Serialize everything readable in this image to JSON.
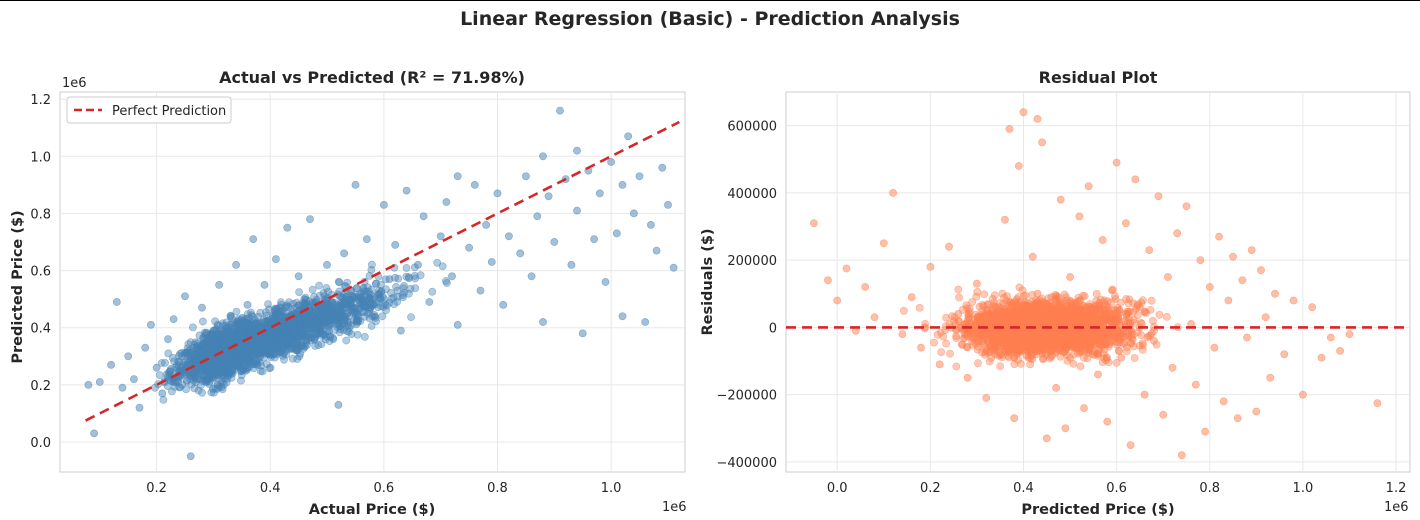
{
  "figure": {
    "title": "Linear Regression (Basic) - Prediction Analysis"
  },
  "chart_data": [
    {
      "type": "scatter",
      "title": "Actual vs Predicted (R² = 71.98%)",
      "xlabel": "Actual Price ($)",
      "ylabel": "Predicted Price ($)",
      "x_multiplier": "1e6",
      "y_multiplier": "1e6",
      "xlim": [
        0.03,
        1.13
      ],
      "ylim": [
        -0.105,
        1.225
      ],
      "xticks": [
        "0.2",
        "0.4",
        "0.6",
        "0.8",
        "1.0"
      ],
      "xtick_values": [
        0.2,
        0.4,
        0.6,
        0.8,
        1.0
      ],
      "yticks": [
        "0.0",
        "0.2",
        "0.4",
        "0.6",
        "0.8",
        "1.0",
        "1.2"
      ],
      "ytick_values": [
        0.0,
        0.2,
        0.4,
        0.6,
        0.8,
        1.0,
        1.2
      ],
      "grid": true,
      "legend": {
        "position": "top-left",
        "entries": [
          "Perfect Prediction"
        ]
      },
      "point_color": "#4682B4",
      "line_color": "#D62728",
      "reference_line": {
        "name": "Perfect Prediction",
        "x": [
          0.075,
          1.12
        ],
        "y": [
          0.075,
          1.12
        ],
        "style": "dashed"
      },
      "series": [
        {
          "points": [
            [
              0.08,
              0.2
            ],
            [
              0.09,
              0.03
            ],
            [
              0.1,
              0.21
            ],
            [
              0.12,
              0.27
            ],
            [
              0.13,
              0.49
            ],
            [
              0.14,
              0.19
            ],
            [
              0.15,
              0.3
            ],
            [
              0.16,
              0.22
            ],
            [
              0.17,
              0.12
            ],
            [
              0.18,
              0.33
            ],
            [
              0.19,
              0.41
            ],
            [
              0.2,
              0.26
            ],
            [
              0.21,
              0.17
            ],
            [
              0.22,
              0.36
            ],
            [
              0.23,
              0.43
            ],
            [
              0.24,
              0.28
            ],
            [
              0.25,
              0.51
            ],
            [
              0.26,
              -0.05
            ],
            [
              0.27,
              0.33
            ],
            [
              0.28,
              0.47
            ],
            [
              0.29,
              0.22
            ],
            [
              0.3,
              0.39
            ],
            [
              0.31,
              0.55
            ],
            [
              0.32,
              0.3
            ],
            [
              0.33,
              0.44
            ],
            [
              0.34,
              0.62
            ],
            [
              0.35,
              0.35
            ],
            [
              0.36,
              0.48
            ],
            [
              0.37,
              0.71
            ],
            [
              0.38,
              0.4
            ],
            [
              0.39,
              0.55
            ],
            [
              0.4,
              0.31
            ],
            [
              0.41,
              0.64
            ],
            [
              0.42,
              0.46
            ],
            [
              0.43,
              0.75
            ],
            [
              0.44,
              0.38
            ],
            [
              0.45,
              0.58
            ],
            [
              0.46,
              0.5
            ],
            [
              0.47,
              0.78
            ],
            [
              0.48,
              0.42
            ],
            [
              0.5,
              0.62
            ],
            [
              0.51,
              0.47
            ],
            [
              0.52,
              0.13
            ],
            [
              0.53,
              0.66
            ],
            [
              0.55,
              0.9
            ],
            [
              0.56,
              0.52
            ],
            [
              0.57,
              0.71
            ],
            [
              0.58,
              0.44
            ],
            [
              0.6,
              0.83
            ],
            [
              0.61,
              0.57
            ],
            [
              0.62,
              0.69
            ],
            [
              0.63,
              0.39
            ],
            [
              0.64,
              0.88
            ],
            [
              0.66,
              0.62
            ],
            [
              0.67,
              0.79
            ],
            [
              0.68,
              0.49
            ],
            [
              0.7,
              0.72
            ],
            [
              0.71,
              0.84
            ],
            [
              0.72,
              0.58
            ],
            [
              0.73,
              0.41
            ],
            [
              0.75,
              0.68
            ],
            [
              0.76,
              0.9
            ],
            [
              0.77,
              0.53
            ],
            [
              0.78,
              0.76
            ],
            [
              0.79,
              0.63
            ],
            [
              0.8,
              0.87
            ],
            [
              0.81,
              0.48
            ],
            [
              0.82,
              0.72
            ],
            [
              0.84,
              0.66
            ],
            [
              0.85,
              0.93
            ],
            [
              0.86,
              0.58
            ],
            [
              0.87,
              0.79
            ],
            [
              0.88,
              0.42
            ],
            [
              0.89,
              0.86
            ],
            [
              0.9,
              0.7
            ],
            [
              0.91,
              1.16
            ],
            [
              0.92,
              0.92
            ],
            [
              0.93,
              0.62
            ],
            [
              0.94,
              0.81
            ],
            [
              0.95,
              0.38
            ],
            [
              0.96,
              0.95
            ],
            [
              0.97,
              0.71
            ],
            [
              0.98,
              0.87
            ],
            [
              0.99,
              0.56
            ],
            [
              1.0,
              0.98
            ],
            [
              1.01,
              0.73
            ],
            [
              1.02,
              0.9
            ],
            [
              1.03,
              1.07
            ],
            [
              1.04,
              0.8
            ],
            [
              1.05,
              0.93
            ],
            [
              1.06,
              0.42
            ],
            [
              1.07,
              0.76
            ],
            [
              1.08,
              0.67
            ],
            [
              1.09,
              0.96
            ],
            [
              1.1,
              0.83
            ],
            [
              1.11,
              0.61
            ],
            [
              1.02,
              0.44
            ],
            [
              0.94,
              1.02
            ],
            [
              0.88,
              1.0
            ],
            [
              0.73,
              0.93
            ]
          ]
        }
      ]
    },
    {
      "type": "scatter",
      "title": "Residual Plot",
      "xlabel": "Predicted Price ($)",
      "ylabel": "Residuals ($)",
      "x_multiplier": "1e6",
      "xlim": [
        -0.11,
        1.23
      ],
      "ylim": [
        -430000,
        700000
      ],
      "xticks": [
        "0.0",
        "0.2",
        "0.4",
        "0.6",
        "0.8",
        "1.0",
        "1.2"
      ],
      "xtick_values": [
        0.0,
        0.2,
        0.4,
        0.6,
        0.8,
        1.0,
        1.2
      ],
      "yticks": [
        "600000",
        "400000",
        "200000",
        "0",
        "−200000",
        "−400000"
      ],
      "ytick_values": [
        600000,
        400000,
        200000,
        0,
        -200000,
        -400000
      ],
      "grid": true,
      "point_color": "#FF7F50",
      "line_color": "#D62728",
      "reference_line": {
        "y": 0,
        "style": "dashed"
      },
      "series": [
        {
          "points": [
            [
              -0.05,
              310000
            ],
            [
              -0.02,
              140000
            ],
            [
              0.0,
              80000
            ],
            [
              0.02,
              175000
            ],
            [
              0.04,
              -10000
            ],
            [
              0.06,
              120000
            ],
            [
              0.08,
              30000
            ],
            [
              0.1,
              250000
            ],
            [
              0.12,
              400000
            ],
            [
              0.14,
              -20000
            ],
            [
              0.16,
              90000
            ],
            [
              0.18,
              -60000
            ],
            [
              0.2,
              180000
            ],
            [
              0.22,
              -110000
            ],
            [
              0.24,
              240000
            ],
            [
              0.26,
              40000
            ],
            [
              0.28,
              -150000
            ],
            [
              0.3,
              130000
            ],
            [
              0.32,
              -210000
            ],
            [
              0.34,
              60000
            ],
            [
              0.36,
              320000
            ],
            [
              0.37,
              590000
            ],
            [
              0.38,
              -270000
            ],
            [
              0.39,
              480000
            ],
            [
              0.4,
              640000
            ],
            [
              0.41,
              -40000
            ],
            [
              0.42,
              210000
            ],
            [
              0.43,
              620000
            ],
            [
              0.44,
              550000
            ],
            [
              0.45,
              -330000
            ],
            [
              0.46,
              90000
            ],
            [
              0.47,
              -180000
            ],
            [
              0.48,
              380000
            ],
            [
              0.49,
              -300000
            ],
            [
              0.5,
              150000
            ],
            [
              0.51,
              -60000
            ],
            [
              0.52,
              330000
            ],
            [
              0.53,
              -240000
            ],
            [
              0.54,
              420000
            ],
            [
              0.55,
              20000
            ],
            [
              0.56,
              -140000
            ],
            [
              0.57,
              260000
            ],
            [
              0.58,
              -280000
            ],
            [
              0.59,
              110000
            ],
            [
              0.6,
              490000
            ],
            [
              0.61,
              -90000
            ],
            [
              0.62,
              310000
            ],
            [
              0.63,
              -350000
            ],
            [
              0.64,
              440000
            ],
            [
              0.65,
              60000
            ],
            [
              0.66,
              -200000
            ],
            [
              0.67,
              230000
            ],
            [
              0.68,
              -40000
            ],
            [
              0.69,
              390000
            ],
            [
              0.7,
              -260000
            ],
            [
              0.71,
              150000
            ],
            [
              0.72,
              -120000
            ],
            [
              0.73,
              280000
            ],
            [
              0.74,
              -380000
            ],
            [
              0.75,
              360000
            ],
            [
              0.76,
              10000
            ],
            [
              0.77,
              -170000
            ],
            [
              0.78,
              200000
            ],
            [
              0.79,
              -310000
            ],
            [
              0.8,
              120000
            ],
            [
              0.81,
              -60000
            ],
            [
              0.82,
              270000
            ],
            [
              0.83,
              -220000
            ],
            [
              0.84,
              80000
            ],
            [
              0.85,
              210000
            ],
            [
              0.86,
              -270000
            ],
            [
              0.87,
              140000
            ],
            [
              0.88,
              -30000
            ],
            [
              0.89,
              230000
            ],
            [
              0.9,
              -250000
            ],
            [
              0.91,
              170000
            ],
            [
              0.92,
              30000
            ],
            [
              0.93,
              -150000
            ],
            [
              0.94,
              100000
            ],
            [
              0.96,
              -80000
            ],
            [
              0.98,
              80000
            ],
            [
              1.0,
              -200000
            ],
            [
              1.02,
              60000
            ],
            [
              1.04,
              -90000
            ],
            [
              1.06,
              -30000
            ],
            [
              1.08,
              -70000
            ],
            [
              1.1,
              -20000
            ],
            [
              1.16,
              -225000
            ],
            [
              0.33,
              30000
            ],
            [
              0.5,
              -90000
            ],
            [
              0.45,
              60000
            ],
            [
              0.55,
              -40000
            ],
            [
              0.4,
              10000
            ],
            [
              0.62,
              40000
            ],
            [
              0.35,
              -80000
            ],
            [
              0.52,
              80000
            ],
            [
              0.28,
              20000
            ],
            [
              0.58,
              -10000
            ],
            [
              0.47,
              -30000
            ],
            [
              0.43,
              100000
            ]
          ]
        }
      ]
    }
  ]
}
